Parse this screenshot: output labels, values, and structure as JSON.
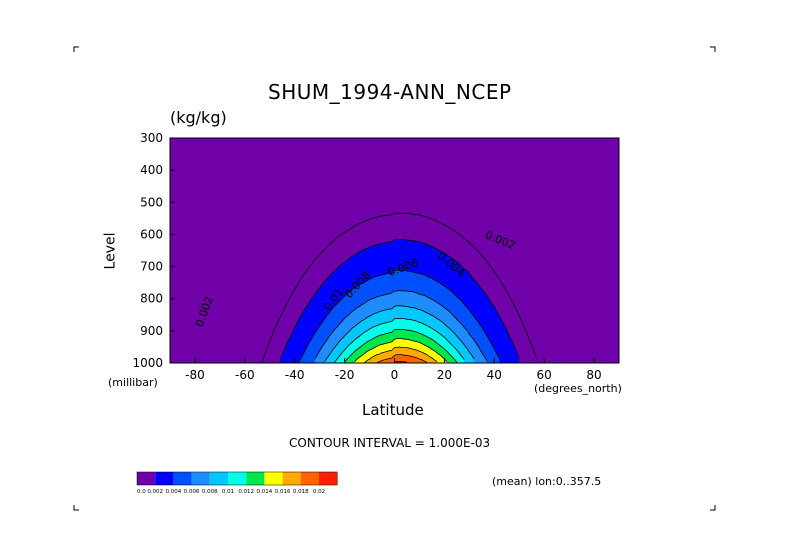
{
  "chart_data": {
    "type": "contour",
    "title": "SHUM_1994-ANN_NCEP",
    "units": "(kg/kg)",
    "xlabel": "Latitude",
    "ylabel": "Level",
    "x_unit": "(degrees_north)",
    "y_unit": "(millibar)",
    "xlim": [
      -90,
      90
    ],
    "ylim": [
      1000,
      300
    ],
    "x_ticks": [
      -80,
      -60,
      -40,
      -20,
      0,
      20,
      40,
      60,
      80
    ],
    "y_ticks": [
      300,
      400,
      500,
      600,
      700,
      800,
      900,
      1000
    ],
    "contour_interval_text": "CONTOUR INTERVAL = 1.000E-03",
    "mean_text": "(mean) lon:0..357.5",
    "contour_labels": [
      "0.002",
      "0.004",
      "0.006",
      "0.008",
      "0.01",
      "0.002"
    ],
    "legend": {
      "colors": [
        "#7000a8",
        "#0000ff",
        "#0050ff",
        "#1e8cff",
        "#00c8ff",
        "#00ffe6",
        "#00e650",
        "#ffff00",
        "#ffaa00",
        "#ff6400",
        "#ff1e00"
      ],
      "labels": [
        "0.0",
        "0.002",
        "0.004",
        "0.006",
        "0.008",
        "0.01",
        "0.012",
        "0.014",
        "0.016",
        "0.018",
        "0.02"
      ]
    },
    "fill_colors": {
      "background": "#7000a8",
      "levels": [
        {
          "min": 0.002,
          "color": "#0000ff"
        },
        {
          "min": 0.004,
          "color": "#0050ff"
        },
        {
          "min": 0.006,
          "color": "#1e8cff"
        },
        {
          "min": 0.008,
          "color": "#00c8ff"
        },
        {
          "min": 0.01,
          "color": "#00ffe6"
        },
        {
          "min": 0.012,
          "color": "#00e650"
        },
        {
          "min": 0.014,
          "color": "#ffff00"
        },
        {
          "min": 0.016,
          "color": "#ffaa00"
        },
        {
          "min": 0.018,
          "color": "#ff6400"
        },
        {
          "min": 0.02,
          "color": "#ff1e00"
        }
      ]
    }
  }
}
